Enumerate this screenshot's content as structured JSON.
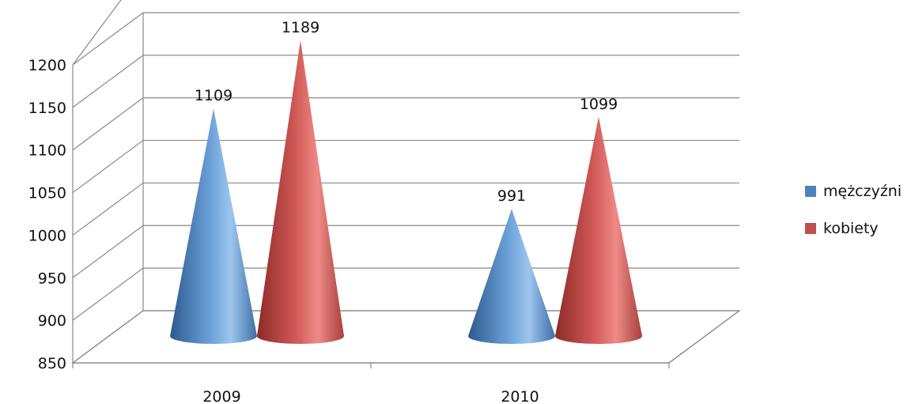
{
  "chart_data": {
    "type": "bar",
    "style": "3d-cone",
    "categories": [
      "2009",
      "2010"
    ],
    "series": [
      {
        "name": "mężczyźni",
        "values": [
          1109,
          991
        ],
        "color": "#4f81bd"
      },
      {
        "name": "kobiety",
        "values": [
          1189,
          1099
        ],
        "color": "#c0504d"
      }
    ],
    "ylim": [
      850,
      1200
    ],
    "yticks": [
      "850",
      "900",
      "950",
      "1000",
      "1050",
      "1100",
      "1150",
      "1200"
    ],
    "data_labels": true,
    "grid": true,
    "legend_position": "right"
  }
}
